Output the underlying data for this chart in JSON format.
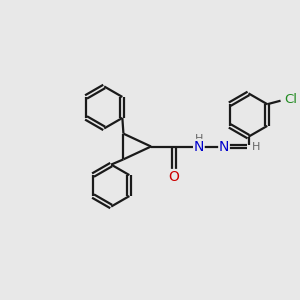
{
  "background_color": "#e8e8e8",
  "line_color": "#1a1a1a",
  "bond_width": 1.6,
  "atoms": {
    "O": {
      "color": "#cc0000"
    },
    "N": {
      "color": "#0000cc"
    },
    "Cl": {
      "color": "#228b22"
    },
    "H": {
      "color": "#666666"
    },
    "C": {
      "color": "#1a1a1a"
    }
  },
  "xlim": [
    0,
    10
  ],
  "ylim": [
    0,
    10
  ]
}
